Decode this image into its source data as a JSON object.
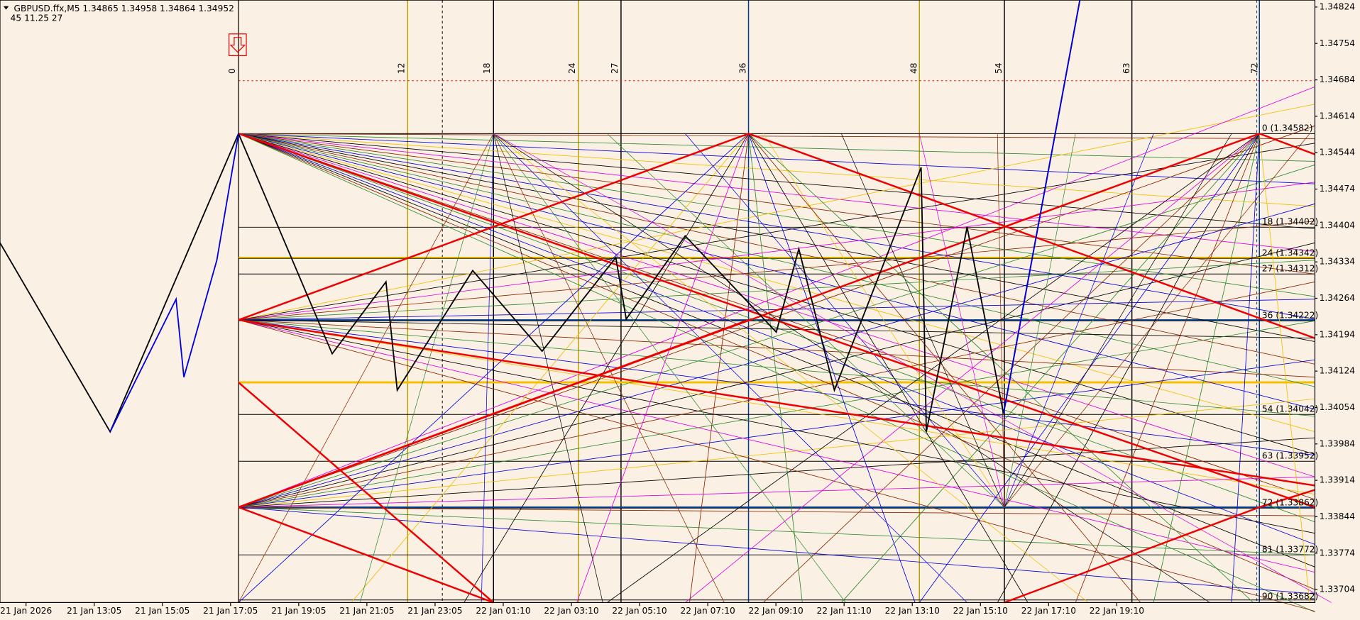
{
  "header": {
    "symbol_line": "GBPUSD.ffx,M5  1.34865 1.34958 1.34864 1.34952",
    "indicator_line": "45  11.25  27"
  },
  "price_axis": [
    "1.34824",
    "1.34754",
    "1.34684",
    "1.34614",
    "1.34544",
    "1.34474",
    "1.34404",
    "1.34334",
    "1.34264",
    "1.34194",
    "1.34124",
    "1.34054",
    "1.33984",
    "1.33914",
    "1.33844",
    "1.33774",
    "1.33704"
  ],
  "time_axis": [
    "21 Jan 2026",
    "21 Jan 13:05",
    "21 Jan 15:05",
    "21 Jan 17:05",
    "21 Jan 19:05",
    "21 Jan 21:05",
    "21 Jan 23:05",
    "22 Jan 01:10",
    "22 Jan 03:10",
    "22 Jan 05:10",
    "22 Jan 07:10",
    "22 Jan 09:10",
    "22 Jan 11:10",
    "22 Jan 13:10",
    "22 Jan 15:10",
    "22 Jan 17:10",
    "22 Jan 19:10"
  ],
  "gann_counts": [
    "0",
    "12",
    "18",
    "24",
    "27",
    "36",
    "48",
    "54",
    "63",
    "72"
  ],
  "gann_levels": [
    "0 (1.34582)",
    "18 (1.34402)",
    "24 (1.34342)",
    "27 (1.34312)",
    "36 (1.34222)",
    "54 (1.34042)",
    "63 (1.33952)",
    "72 (1.33862)",
    "81 (1.33772)",
    "90 (1.33682)"
  ]
}
